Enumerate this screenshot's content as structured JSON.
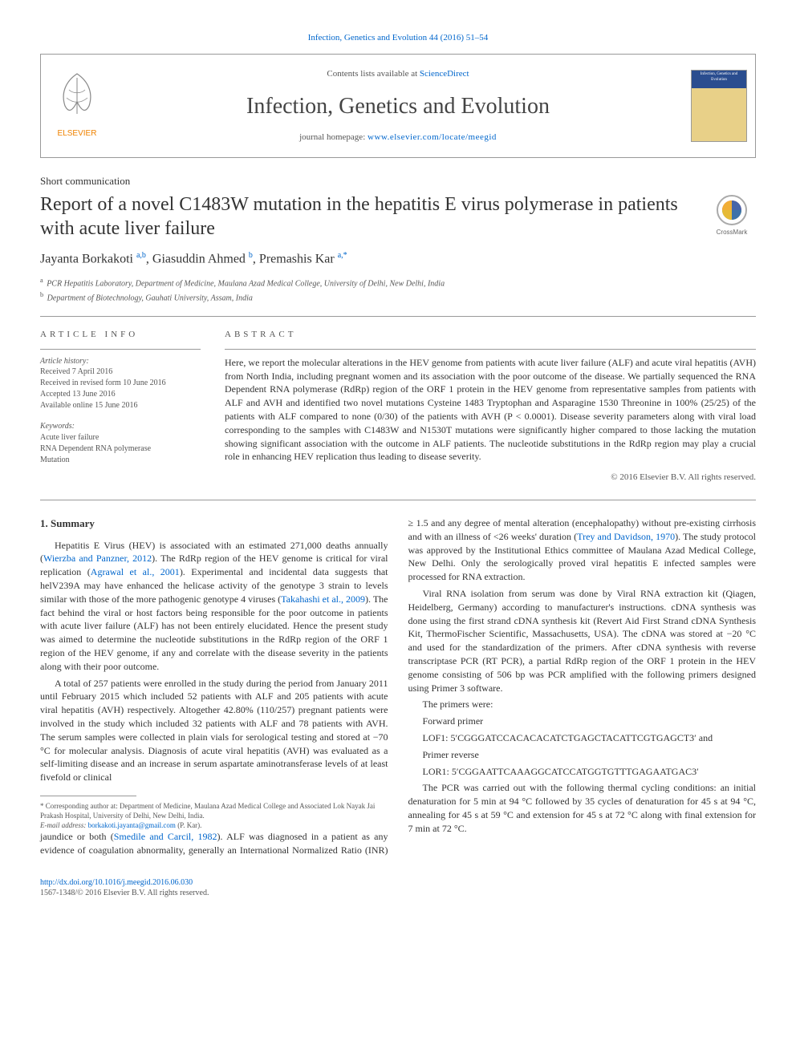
{
  "top_citation": "Infection, Genetics and Evolution 44 (2016) 51–54",
  "header": {
    "contents_text": "Contents lists available at ",
    "sciencedirect": "ScienceDirect",
    "journal_name": "Infection, Genetics and Evolution",
    "homepage_label": "journal homepage: ",
    "homepage_url": "www.elsevier.com/locate/meegid",
    "cover_text": "Infection, Genetics and Evolution"
  },
  "article_type": "Short communication",
  "title": "Report of a novel C1483W mutation in the hepatitis E virus polymerase in patients with acute liver failure",
  "crossmark_label": "CrossMark",
  "authors_html": "Jayanta Borkakoti <sup>a,b</sup>, Giasuddin Ahmed <sup>b</sup>, Premashis Kar <sup>a,*</sup>",
  "affiliations": [
    {
      "sup": "a",
      "text": "PCR Hepatitis Laboratory, Department of Medicine, Maulana Azad Medical College, University of Delhi, New Delhi, India"
    },
    {
      "sup": "b",
      "text": "Department of Biotechnology, Gauhati University, Assam, India"
    }
  ],
  "info": {
    "head": "ARTICLE INFO",
    "history_label": "Article history:",
    "history": [
      "Received 7 April 2016",
      "Received in revised form 10 June 2016",
      "Accepted 13 June 2016",
      "Available online 15 June 2016"
    ],
    "keywords_label": "Keywords:",
    "keywords": [
      "Acute liver failure",
      "RNA Dependent RNA polymerase",
      "Mutation"
    ]
  },
  "abstract": {
    "head": "ABSTRACT",
    "text": "Here, we report the molecular alterations in the HEV genome from patients with acute liver failure (ALF) and acute viral hepatitis (AVH) from North India, including pregnant women and its association with the poor outcome of the disease. We partially sequenced the RNA Dependent RNA polymerase (RdRp) region of the ORF 1 protein in the HEV genome from representative samples from patients with ALF and AVH and identified two novel mutations Cysteine 1483 Tryptophan and Asparagine 1530 Threonine in 100% (25/25) of the patients with ALF compared to none (0/30) of the patients with AVH (P < 0.0001). Disease severity parameters along with viral load corresponding to the samples with C1483W and N1530T mutations were significantly higher compared to those lacking the mutation showing significant association with the outcome in ALF patients. The nucleotide substitutions in the RdRp region may play a crucial role in enhancing HEV replication thus leading to disease severity.",
    "copyright": "© 2016 Elsevier B.V. All rights reserved."
  },
  "body": {
    "heading": "1. Summary",
    "p1": "Hepatitis E Virus (HEV) is associated with an estimated 271,000 deaths annually (Wierzba and Panzner, 2012). The RdRp region of the HEV genome is critical for viral replication (Agrawal et al., 2001). Experimental and incidental data suggests that helV239A may have enhanced the helicase activity of the genotype 3 strain to levels similar with those of the more pathogenic genotype 4 viruses (Takahashi et al., 2009). The fact behind the viral or host factors being responsible for the poor outcome in patients with acute liver failure (ALF) has not been entirely elucidated. Hence the present study was aimed to determine the nucleotide substitutions in the RdRp region of the ORF 1 region of the HEV genome, if any and correlate with the disease severity in the patients along with their poor outcome.",
    "p2": "A total of 257 patients were enrolled in the study during the period from January 2011 until February 2015 which included 52 patients with ALF and 205 patients with acute viral hepatitis (AVH) respectively. Altogether 42.80% (110/257) pregnant patients were involved in the study which included 32 patients with ALF and 78 patients with AVH. The serum samples were collected in plain vials for serological testing and stored at −70 °C for molecular analysis. Diagnosis of acute viral hepatitis (AVH) was evaluated as a self-limiting disease and an increase in serum aspartate aminotransferase levels of at least fivefold or clinical",
    "p3": "jaundice or both (Smedile and Carcil, 1982). ALF was diagnosed in a patient as any evidence of coagulation abnormality, generally an International Normalized Ratio (INR) ≥ 1.5 and any degree of mental alteration (encephalopathy) without pre-existing cirrhosis and with an illness of <26 weeks' duration (Trey and Davidson, 1970). The study protocol was approved by the Institutional Ethics committee of Maulana Azad Medical College, New Delhi. Only the serologically proved viral hepatitis E infected samples were processed for RNA extraction.",
    "p4": "Viral RNA isolation from serum was done by Viral RNA extraction kit (Qiagen, Heidelberg, Germany) according to manufacturer's instructions. cDNA synthesis was done using the first strand cDNA synthesis kit (Revert Aid First Strand cDNA Synthesis Kit, ThermoFischer Scientific, Massachusetts, USA). The cDNA was stored at −20 °C and used for the standardization of the primers. After cDNA synthesis with reverse transcriptase PCR (RT PCR), a partial RdRp region of the ORF 1 protein in the HEV genome consisting of 506 bp was PCR amplified with the following primers designed using Primer 3 software.",
    "primers_intro": "The primers were:",
    "fwd_label": "Forward primer",
    "fwd_seq": "LOF1: 5′CGGGATCCACACACATCTGAGCTACATTCGTGAGCT3′ and",
    "rev_label": "Primer reverse",
    "rev_seq": "LOR1: 5′CGGAATTCAAAGGCATCCATGGTGTTTGAGAATGAC3′",
    "p5": "The PCR was carried out with the following thermal cycling conditions: an initial denaturation for 5 min at 94 °C followed by 35 cycles of denaturation for 45 s at 94 °C, annealing for 45 s at 59 °C and extension for 45 s at 72 °C along with final extension for 7 min at 72 °C."
  },
  "footnote": {
    "corr": "* Corresponding author at: Department of Medicine, Maulana Azad Medical College and Associated Lok Nayak Jai Prakash Hospital, University of Delhi, New Delhi, India.",
    "email_label": "E-mail address: ",
    "email": "borkakoti.jayanta@gmail.com",
    "email_suffix": " (P. Kar)."
  },
  "footer": {
    "doi": "http://dx.doi.org/10.1016/j.meegid.2016.06.030",
    "issn_copy": "1567-1348/© 2016 Elsevier B.V. All rights reserved."
  },
  "colors": {
    "link": "#0066cc",
    "text": "#333333",
    "muted": "#555555",
    "border": "#999999",
    "elsevier_orange": "#ef8200",
    "cover_blue": "#2a4d8f",
    "cover_sand": "#e8d088"
  }
}
